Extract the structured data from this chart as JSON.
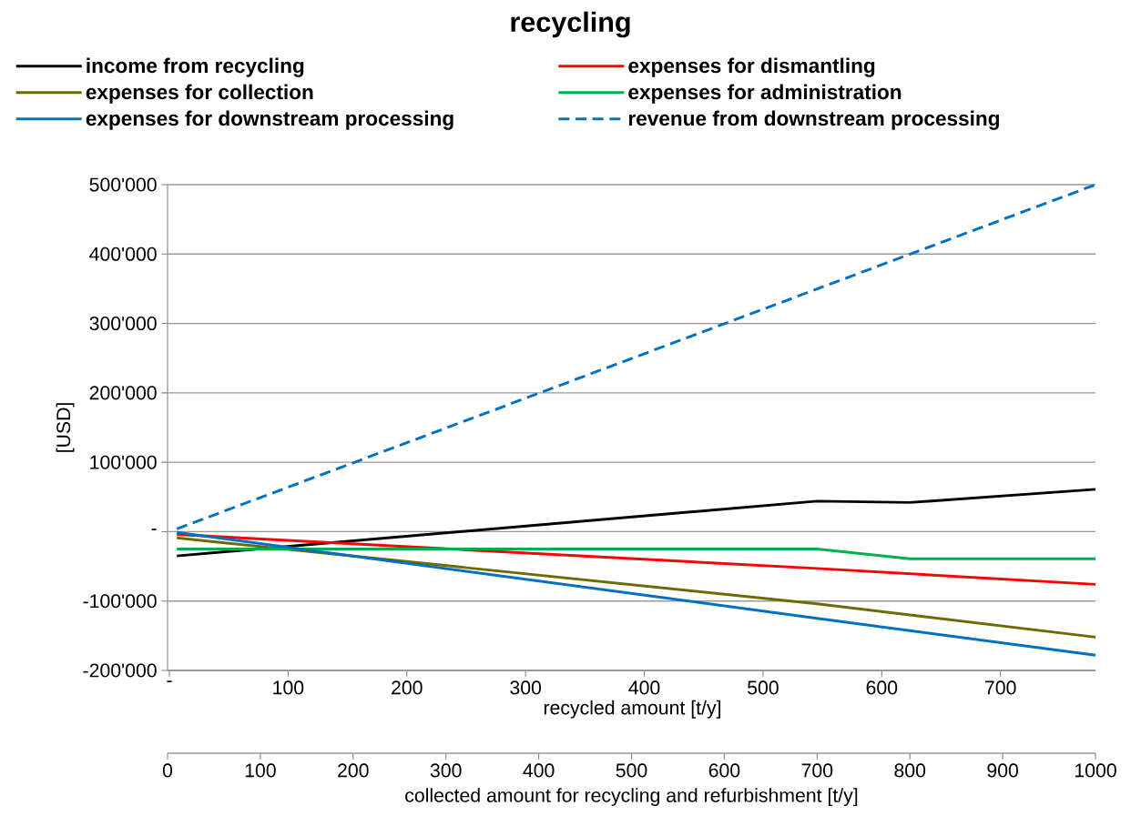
{
  "chart_data": {
    "type": "line",
    "title": "recycling",
    "ylabel": "[USD]",
    "xlabel": "collected amount for recycling and refurbishment [t/y]",
    "x2label": "recycled amount [t/y]",
    "xlim": [
      0,
      1000
    ],
    "xticks": [
      0,
      100,
      200,
      300,
      400,
      500,
      600,
      700,
      800,
      900,
      1000
    ],
    "x2lim": [
      0,
      780
    ],
    "x2ticks": [
      {
        "value": 0,
        "label": "-"
      },
      100,
      200,
      300,
      400,
      500,
      600,
      700
    ],
    "ylim": [
      -200000,
      500000
    ],
    "yticks": [
      {
        "value": -200000,
        "label": "-200'000"
      },
      {
        "value": -100000,
        "label": "-100'000"
      },
      {
        "value": 0,
        "label": "-"
      },
      {
        "value": 100000,
        "label": "100'000"
      },
      {
        "value": 200000,
        "label": "200'000"
      },
      {
        "value": 300000,
        "label": "300'000"
      },
      {
        "value": 400000,
        "label": "400'000"
      },
      {
        "value": 500000,
        "label": "500'000"
      }
    ],
    "grid": "y",
    "legend": "top",
    "line_style": "solid",
    "series": [
      {
        "name": "income from recycling",
        "color": "#000000",
        "x": [
          10,
          700,
          800,
          1000
        ],
        "values": [
          -35000,
          44000,
          42000,
          61000
        ]
      },
      {
        "name": "expenses for dismantling",
        "color": "#ff0000",
        "x": [
          10,
          700,
          1000
        ],
        "values": [
          -4000,
          -53000,
          -76000
        ]
      },
      {
        "name": "expenses for collection",
        "color": "#6b6b00",
        "x": [
          10,
          700,
          1000
        ],
        "values": [
          -9000,
          -104000,
          -152000
        ]
      },
      {
        "name": "expenses for administration",
        "color": "#00b050",
        "x": [
          10,
          700,
          800,
          1000
        ],
        "values": [
          -25000,
          -25000,
          -39000,
          -39000
        ]
      },
      {
        "name": "expenses for downstream processing",
        "color": "#0070c0",
        "x": [
          10,
          700,
          1000
        ],
        "values": [
          -1000,
          -125000,
          -178000
        ]
      },
      {
        "name": "revenue from downstream processing",
        "color": "#0070c0",
        "x": [
          10,
          1000
        ],
        "values": [
          4000,
          500000
        ],
        "line_style": "dashed"
      }
    ]
  }
}
